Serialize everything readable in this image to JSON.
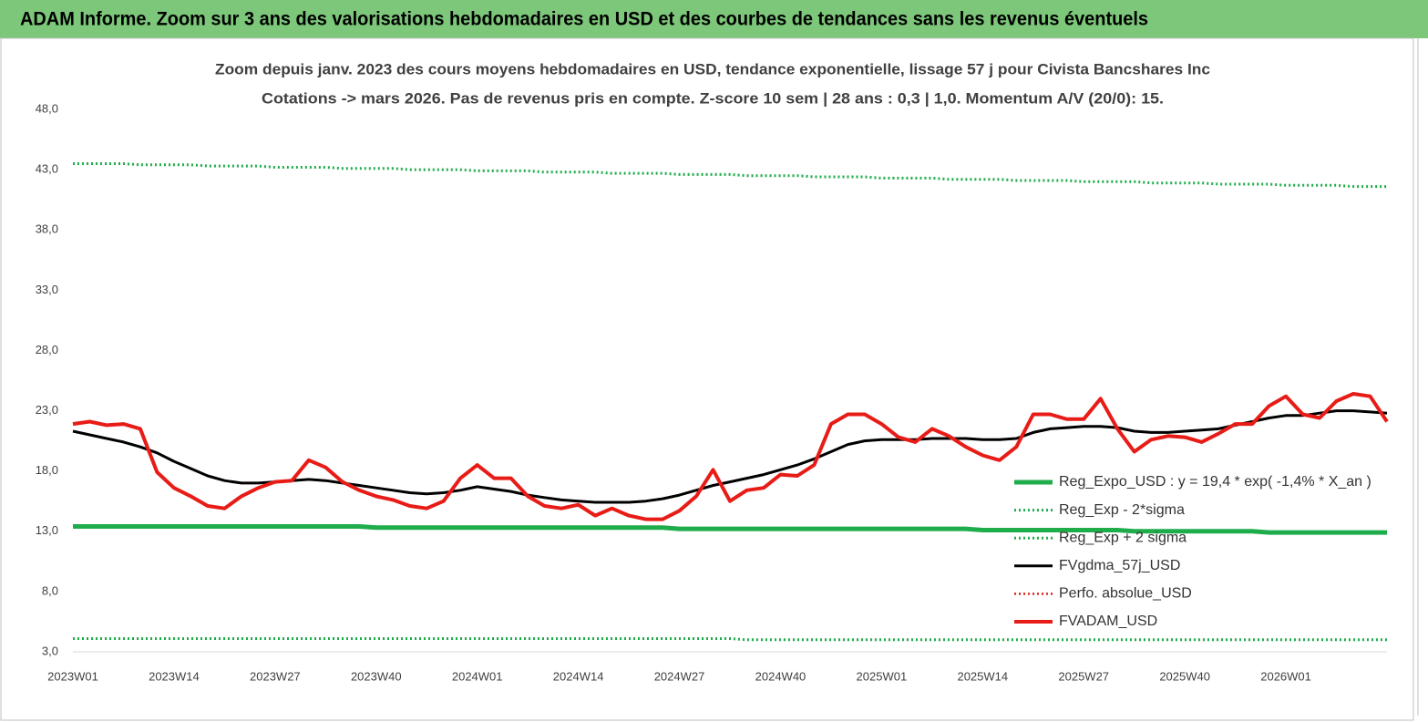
{
  "chart_data": {
    "type": "line",
    "title": "ADAM Informe. Zoom sur 3 ans des valorisations hebdomadaires en USD et des courbes de tendances sans les revenus éventuels",
    "subtitle": [
      "Zoom depuis janv. 2023 des cours moyens hebdomadaires en USD, tendance exponentielle, lissage 57 j pour Civista Bancshares Inc",
      "Cotations -> mars 2026. Pas de revenus pris en compte. Z-score 10 sem  | 28 ans : 0,3 | 1,0. Momentum A/V (20/0): 15."
    ],
    "categories": [
      "2023W01",
      null,
      null,
      null,
      null,
      null,
      "2023W14",
      null,
      null,
      null,
      null,
      null,
      "2023W27",
      null,
      null,
      null,
      null,
      null,
      "2023W40",
      null,
      null,
      null,
      null,
      null,
      "2024W01",
      null,
      null,
      null,
      null,
      null,
      "2024W14",
      null,
      null,
      null,
      null,
      null,
      "2024W27",
      null,
      null,
      null,
      null,
      null,
      "2024W40",
      null,
      null,
      null,
      null,
      null,
      "2025W01",
      null,
      null,
      null,
      null,
      null,
      "2025W14",
      null,
      null,
      null,
      null,
      null,
      "2025W27",
      null,
      null,
      null,
      null,
      null,
      "2025W40",
      null,
      null,
      null,
      null,
      null,
      "2026W01",
      null,
      null,
      null,
      null,
      null,
      null
    ],
    "ylim": [
      3,
      48
    ],
    "yticks": [
      {
        "value": 3,
        "label": "3,0"
      },
      {
        "value": 8,
        "label": "8,0"
      },
      {
        "value": 13,
        "label": "13,0"
      },
      {
        "value": 18,
        "label": "18,0"
      },
      {
        "value": 23,
        "label": "23,0"
      },
      {
        "value": 28,
        "label": "28,0"
      },
      {
        "value": 33,
        "label": "33,0"
      },
      {
        "value": 38,
        "label": "38,0"
      },
      {
        "value": 43,
        "label": "43,0"
      },
      {
        "value": 48,
        "label": "48,0"
      }
    ],
    "grid": false,
    "legend": "lower right",
    "series": [
      {
        "name": "Reg_Expo_USD : y = 19,4 * exp( -1,4% *  X_an )",
        "color": "#1fad4b",
        "line_style": "solid",
        "values": [
          13.4,
          13.4,
          13.4,
          13.4,
          13.4,
          13.4,
          13.4,
          13.4,
          13.4,
          13.4,
          13.4,
          13.4,
          13.4,
          13.4,
          13.4,
          13.4,
          13.4,
          13.4,
          13.3,
          13.3,
          13.3,
          13.3,
          13.3,
          13.3,
          13.3,
          13.3,
          13.3,
          13.3,
          13.3,
          13.3,
          13.3,
          13.3,
          13.3,
          13.3,
          13.3,
          13.3,
          13.2,
          13.2,
          13.2,
          13.2,
          13.2,
          13.2,
          13.2,
          13.2,
          13.2,
          13.2,
          13.2,
          13.2,
          13.2,
          13.2,
          13.2,
          13.2,
          13.2,
          13.2,
          13.1,
          13.1,
          13.1,
          13.1,
          13.1,
          13.1,
          13.1,
          13.1,
          13.1,
          13.0,
          13.0,
          13.0,
          13.0,
          13.0,
          13.0,
          13.0,
          13.0,
          12.9,
          12.9,
          12.9,
          12.9,
          12.9,
          12.9,
          12.9,
          12.9
        ]
      },
      {
        "name": "Reg_Exp - 2*sigma",
        "color": "#1fad4b",
        "line_style": "dotted",
        "values": [
          4.1,
          4.1,
          4.1,
          4.1,
          4.1,
          4.1,
          4.1,
          4.1,
          4.1,
          4.1,
          4.1,
          4.1,
          4.1,
          4.1,
          4.1,
          4.1,
          4.1,
          4.1,
          4.1,
          4.1,
          4.1,
          4.1,
          4.1,
          4.1,
          4.1,
          4.1,
          4.1,
          4.1,
          4.1,
          4.1,
          4.1,
          4.1,
          4.1,
          4.1,
          4.1,
          4.1,
          4.1,
          4.1,
          4.1,
          4.1,
          4.0,
          4.0,
          4.0,
          4.0,
          4.0,
          4.0,
          4.0,
          4.0,
          4.0,
          4.0,
          4.0,
          4.0,
          4.0,
          4.0,
          4.0,
          4.0,
          4.0,
          4.0,
          4.0,
          4.0,
          4.0,
          4.0,
          4.0,
          4.0,
          4.0,
          4.0,
          4.0,
          4.0,
          4.0,
          4.0,
          4.0,
          4.0,
          4.0,
          4.0,
          4.0,
          4.0,
          4.0,
          4.0,
          4.0
        ]
      },
      {
        "name": "Reg_Exp + 2 sigma",
        "color": "#1fad4b",
        "line_style": "dotted",
        "values": [
          43.5,
          43.5,
          43.5,
          43.5,
          43.4,
          43.4,
          43.4,
          43.4,
          43.3,
          43.3,
          43.3,
          43.3,
          43.2,
          43.2,
          43.2,
          43.2,
          43.1,
          43.1,
          43.1,
          43.1,
          43.0,
          43.0,
          43.0,
          43.0,
          42.9,
          42.9,
          42.9,
          42.9,
          42.8,
          42.8,
          42.8,
          42.8,
          42.7,
          42.7,
          42.7,
          42.7,
          42.6,
          42.6,
          42.6,
          42.6,
          42.5,
          42.5,
          42.5,
          42.5,
          42.4,
          42.4,
          42.4,
          42.4,
          42.3,
          42.3,
          42.3,
          42.3,
          42.2,
          42.2,
          42.2,
          42.2,
          42.1,
          42.1,
          42.1,
          42.1,
          42.0,
          42.0,
          42.0,
          42.0,
          41.9,
          41.9,
          41.9,
          41.9,
          41.8,
          41.8,
          41.8,
          41.8,
          41.7,
          41.7,
          41.7,
          41.7,
          41.6,
          41.6,
          41.6
        ]
      },
      {
        "name": "FVgdma_57j_USD",
        "color": "#000000",
        "line_style": "solid",
        "values": [
          21.3,
          21.0,
          20.7,
          20.4,
          20.0,
          19.5,
          18.8,
          18.2,
          17.6,
          17.2,
          17.0,
          17.0,
          17.1,
          17.2,
          17.3,
          17.2,
          17.0,
          16.8,
          16.6,
          16.4,
          16.2,
          16.1,
          16.2,
          16.4,
          16.7,
          16.5,
          16.3,
          16.0,
          15.8,
          15.6,
          15.5,
          15.4,
          15.4,
          15.4,
          15.5,
          15.7,
          16.0,
          16.4,
          16.8,
          17.1,
          17.4,
          17.7,
          18.1,
          18.5,
          19.0,
          19.6,
          20.2,
          20.5,
          20.6,
          20.6,
          20.6,
          20.7,
          20.7,
          20.7,
          20.6,
          20.6,
          20.7,
          21.2,
          21.5,
          21.6,
          21.7,
          21.7,
          21.6,
          21.3,
          21.2,
          21.2,
          21.3,
          21.4,
          21.5,
          21.8,
          22.1,
          22.4,
          22.6,
          22.6,
          22.8,
          23.0,
          23.0,
          22.9,
          22.8
        ]
      },
      {
        "name": "Perfo. absolue_USD",
        "color": "#e0201b",
        "line_style": "dotted",
        "values": [
          null,
          null,
          null,
          null,
          null,
          null,
          null,
          null,
          null,
          null,
          null,
          null,
          null,
          null,
          null,
          null,
          null,
          null,
          null,
          null,
          null,
          null,
          null,
          null,
          null,
          null,
          null,
          null,
          null,
          null,
          null,
          null,
          null,
          null,
          null,
          null,
          null,
          null,
          null,
          null,
          null,
          null,
          null,
          null,
          null,
          null,
          null,
          null,
          null,
          null,
          null,
          null,
          null,
          null,
          null,
          null,
          null,
          null,
          null,
          null,
          null,
          null,
          null,
          null,
          null,
          null,
          null,
          null,
          null,
          null,
          null,
          null,
          null,
          null,
          null,
          null,
          null,
          null,
          null
        ]
      },
      {
        "name": "FVADAM_USD",
        "color": "#e81c17",
        "line_style": "solid",
        "values": [
          21.9,
          22.1,
          21.8,
          21.9,
          21.5,
          17.9,
          16.6,
          15.9,
          15.1,
          14.9,
          15.9,
          16.6,
          17.1,
          17.2,
          18.9,
          18.3,
          17.1,
          16.4,
          15.9,
          15.6,
          15.1,
          14.9,
          15.5,
          17.4,
          18.5,
          17.4,
          17.4,
          15.9,
          15.1,
          14.9,
          15.2,
          14.3,
          14.9,
          14.3,
          14.0,
          14.0,
          14.7,
          15.9,
          18.1,
          15.5,
          16.4,
          16.6,
          17.7,
          17.6,
          18.5,
          21.9,
          22.7,
          22.7,
          21.9,
          20.8,
          20.4,
          21.5,
          20.9,
          20.0,
          19.3,
          18.9,
          20.0,
          22.7,
          22.7,
          22.3,
          22.3,
          24.0,
          21.5,
          19.6,
          20.6,
          20.9,
          20.8,
          20.4,
          21.1,
          21.9,
          21.9,
          23.4,
          24.2,
          22.7,
          22.4,
          23.8,
          24.4,
          24.2,
          22.1
        ]
      }
    ]
  }
}
